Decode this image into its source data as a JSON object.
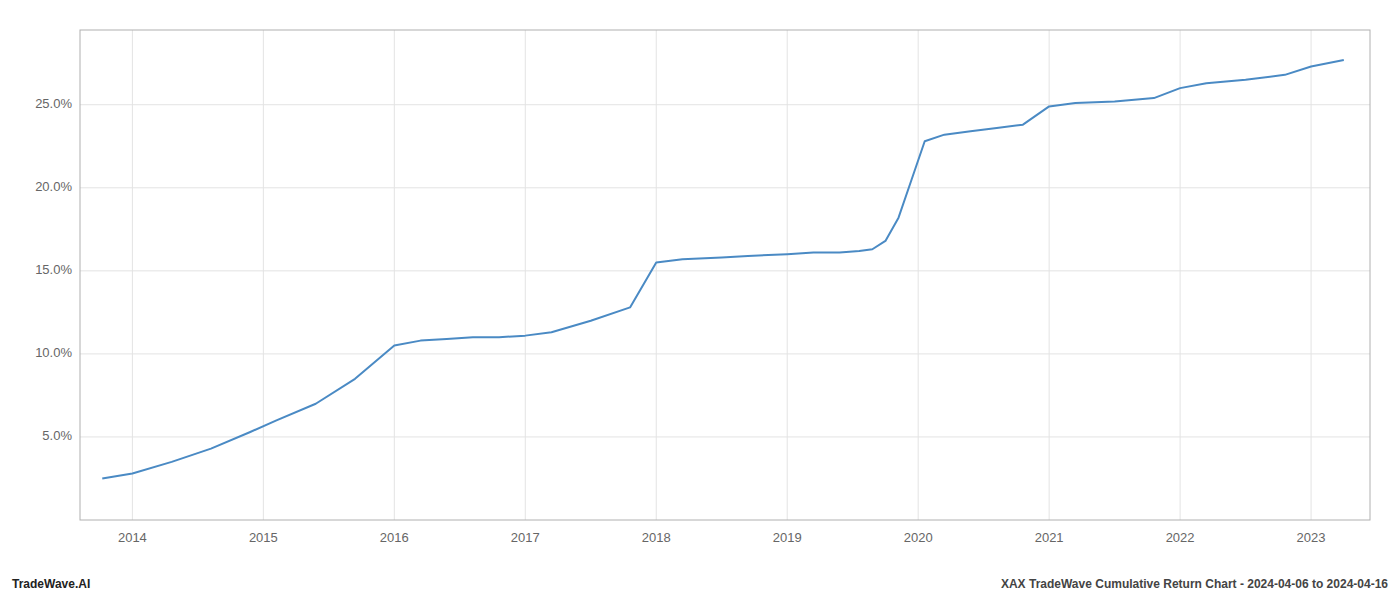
{
  "chart_data": {
    "type": "line",
    "x": [
      2013.77,
      2014.0,
      2014.3,
      2014.6,
      2014.9,
      2015.1,
      2015.4,
      2015.7,
      2016.0,
      2016.2,
      2016.4,
      2016.6,
      2016.8,
      2017.0,
      2017.2,
      2017.5,
      2017.8,
      2018.0,
      2018.2,
      2018.5,
      2018.7,
      2019.0,
      2019.2,
      2019.4,
      2019.55,
      2019.65,
      2019.75,
      2019.85,
      2019.95,
      2020.05,
      2020.2,
      2020.4,
      2020.6,
      2020.8,
      2021.0,
      2021.2,
      2021.5,
      2021.8,
      2022.0,
      2022.2,
      2022.5,
      2022.8,
      2023.0,
      2023.25
    ],
    "values": [
      0.025,
      0.028,
      0.035,
      0.043,
      0.053,
      0.06,
      0.07,
      0.085,
      0.105,
      0.108,
      0.109,
      0.11,
      0.11,
      0.111,
      0.113,
      0.12,
      0.128,
      0.155,
      0.157,
      0.158,
      0.159,
      0.16,
      0.161,
      0.161,
      0.162,
      0.163,
      0.168,
      0.182,
      0.205,
      0.228,
      0.232,
      0.234,
      0.236,
      0.238,
      0.249,
      0.251,
      0.252,
      0.254,
      0.26,
      0.263,
      0.265,
      0.268,
      0.273,
      0.277
    ],
    "color": "#4a8ac4",
    "xlim": [
      2013.6,
      2023.45
    ],
    "ylim": [
      0.0,
      0.295
    ],
    "xticks": [
      2014,
      2015,
      2016,
      2017,
      2018,
      2019,
      2020,
      2021,
      2022,
      2023
    ],
    "yticks": [
      {
        "value": 0.05,
        "label": "5.0%"
      },
      {
        "value": 0.1,
        "label": "10.0%"
      },
      {
        "value": 0.15,
        "label": "15.0%"
      },
      {
        "value": 0.2,
        "label": "20.0%"
      },
      {
        "value": 0.25,
        "label": "25.0%"
      }
    ],
    "grid": true,
    "annotations": [
      "TradeWave.AI",
      "XAX TradeWave Cumulative Return Chart - 2024-04-06 to 2024-04-16"
    ]
  }
}
